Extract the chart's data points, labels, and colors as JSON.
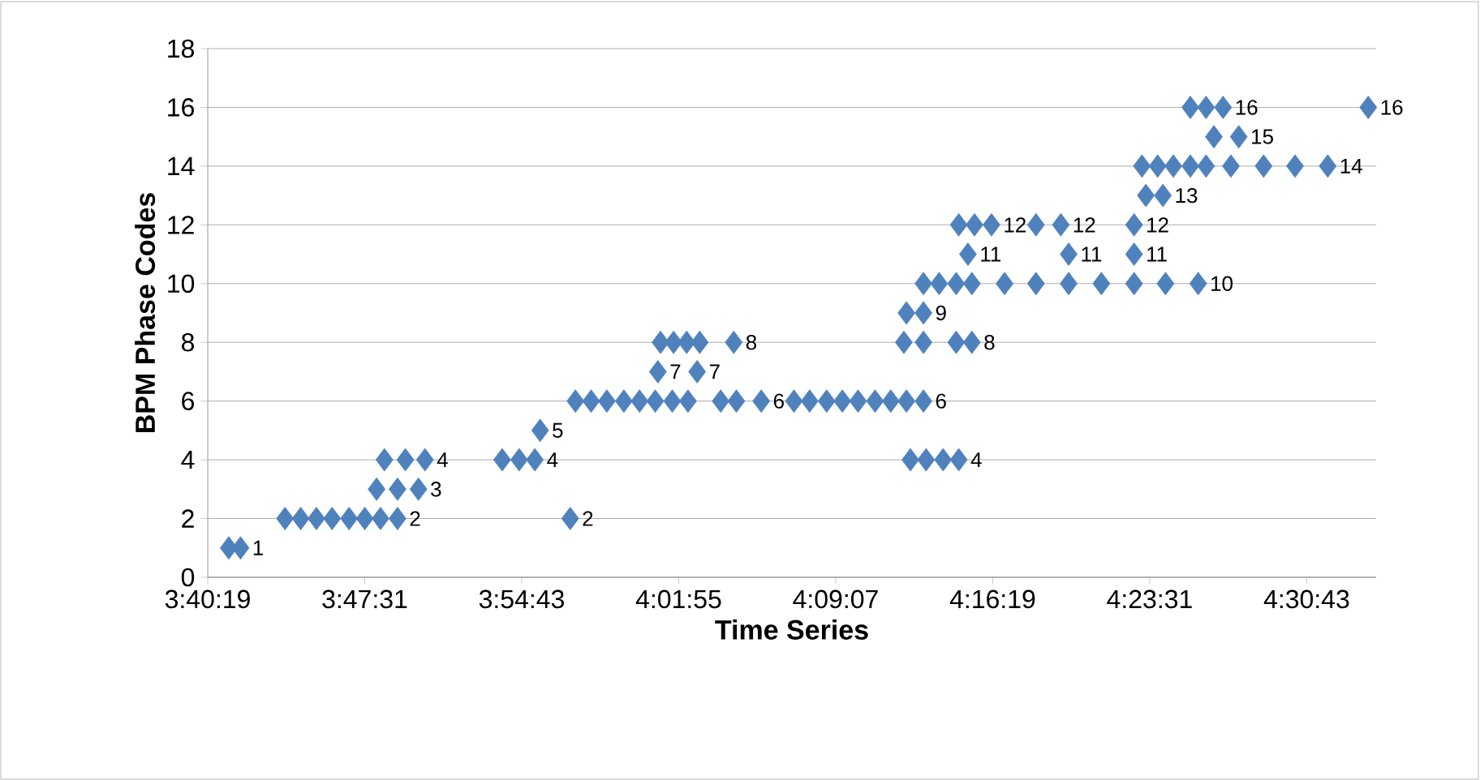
{
  "chart_data": {
    "type": "scatter",
    "xlabel": "Time Series",
    "ylabel": "BPM Phase Codes",
    "x": [
      3.688,
      3.697,
      3.731,
      3.743,
      3.755,
      3.767,
      3.78,
      3.792,
      3.804,
      3.817,
      3.949,
      3.801,
      3.817,
      3.833,
      3.807,
      3.823,
      3.838,
      3.897,
      3.91,
      3.922,
      4.209,
      4.221,
      4.234,
      4.246,
      3.926,
      3.953,
      3.965,
      3.977,
      3.99,
      4.002,
      4.014,
      4.027,
      4.039,
      4.064,
      4.076,
      4.095,
      4.12,
      4.132,
      4.145,
      4.157,
      4.169,
      4.182,
      4.194,
      4.206,
      4.219,
      4.016,
      4.046,
      4.018,
      4.028,
      4.038,
      4.048,
      4.074,
      4.204,
      4.219,
      4.244,
      4.256,
      4.206,
      4.219,
      4.219,
      4.231,
      4.244,
      4.256,
      4.281,
      4.305,
      4.33,
      4.355,
      4.38,
      4.404,
      4.429,
      4.253,
      4.33,
      4.38,
      4.246,
      4.258,
      4.271,
      4.305,
      4.324,
      4.38,
      4.389,
      4.402,
      4.386,
      4.398,
      4.41,
      4.423,
      4.435,
      4.454,
      4.479,
      4.503,
      4.528,
      4.441,
      4.46,
      4.423,
      4.435,
      4.448,
      4.559
    ],
    "values": [
      1,
      1,
      2,
      2,
      2,
      2,
      2,
      2,
      2,
      2,
      2,
      3,
      3,
      3,
      4,
      4,
      4,
      4,
      4,
      4,
      4,
      4,
      4,
      4,
      5,
      6,
      6,
      6,
      6,
      6,
      6,
      6,
      6,
      6,
      6,
      6,
      6,
      6,
      6,
      6,
      6,
      6,
      6,
      6,
      6,
      7,
      7,
      8,
      8,
      8,
      8,
      8,
      8,
      8,
      8,
      8,
      9,
      9,
      10,
      10,
      10,
      10,
      10,
      10,
      10,
      10,
      10,
      10,
      10,
      11,
      11,
      11,
      12,
      12,
      12,
      12,
      12,
      12,
      13,
      13,
      14,
      14,
      14,
      14,
      14,
      14,
      14,
      14,
      14,
      15,
      15,
      16,
      16,
      16,
      16
    ],
    "value_labels": [
      null,
      "1",
      null,
      null,
      null,
      null,
      null,
      null,
      null,
      "2",
      "2",
      null,
      null,
      "3",
      null,
      null,
      "4",
      null,
      null,
      "4",
      null,
      null,
      null,
      "4",
      "5",
      null,
      null,
      null,
      null,
      null,
      null,
      null,
      null,
      null,
      null,
      "6",
      null,
      null,
      null,
      null,
      null,
      null,
      null,
      null,
      "6",
      "7",
      "7",
      null,
      null,
      null,
      null,
      "8",
      null,
      null,
      null,
      "8",
      null,
      "9",
      null,
      null,
      null,
      null,
      null,
      null,
      null,
      null,
      null,
      null,
      "10",
      "11",
      "11",
      "11",
      null,
      null,
      "12",
      null,
      "12",
      "12",
      null,
      "13",
      null,
      null,
      null,
      null,
      null,
      null,
      null,
      null,
      "14",
      null,
      "15",
      null,
      null,
      "16",
      "16"
    ],
    "color": "#4f81bd",
    "marker": "diamond",
    "grid": "y",
    "xlim": [
      3.67194,
      4.565
    ],
    "ylim": [
      0,
      18
    ],
    "xticks": [
      {
        "value": 3.67194,
        "label": "3:40:19"
      },
      {
        "value": 3.79194,
        "label": "3:47:31"
      },
      {
        "value": 3.91194,
        "label": "3:54:43"
      },
      {
        "value": 4.03194,
        "label": "4:01:55"
      },
      {
        "value": 4.15194,
        "label": "4:09:07"
      },
      {
        "value": 4.27194,
        "label": "4:16:19"
      },
      {
        "value": 4.39194,
        "label": "4:23:31"
      },
      {
        "value": 4.51194,
        "label": "4:30:43"
      }
    ],
    "yticks": [
      0,
      2,
      4,
      6,
      8,
      10,
      12,
      14,
      16,
      18
    ]
  }
}
